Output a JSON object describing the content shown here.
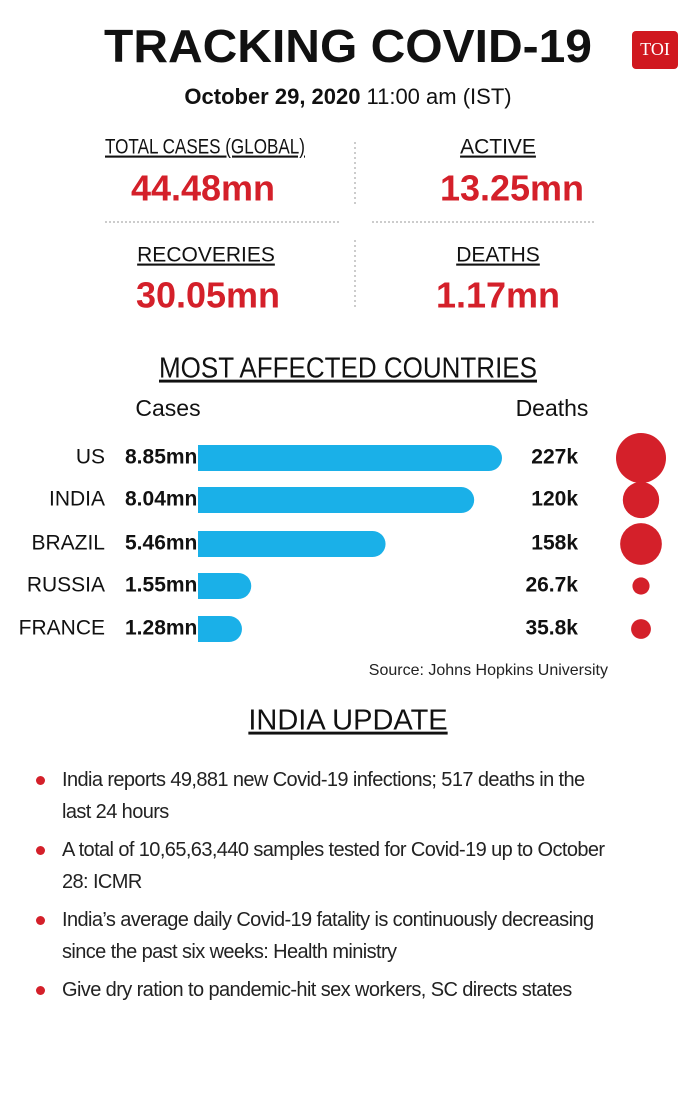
{
  "header": {
    "title": "TRACKING COVID-19",
    "logo": "TOI",
    "date": "October 29, 2020",
    "time": "11:00 am (IST)"
  },
  "stats": [
    {
      "label": "TOTAL CASES (GLOBAL)",
      "value": "44.48mn"
    },
    {
      "label": "ACTIVE",
      "value": "13.25mn"
    },
    {
      "label": "RECOVERIES",
      "value": "30.05mn"
    },
    {
      "label": "DEATHS",
      "value": "1.17mn"
    }
  ],
  "chart_data": {
    "type": "bar",
    "title": "MOST AFFECTED COUNTRIES",
    "categories": [
      "US",
      "INDIA",
      "BRAZIL",
      "RUSSIA",
      "FRANCE"
    ],
    "series": [
      {
        "name": "Cases",
        "color": "#1ab0e8",
        "values": [
          8.85,
          8.04,
          5.46,
          1.55,
          1.28
        ],
        "value_labels": [
          "8.85mn",
          "8.04mn",
          "5.46mn",
          "1.55mn",
          "1.28mn"
        ]
      },
      {
        "name": "Deaths",
        "color": "#d4202a",
        "values": [
          227,
          120,
          158,
          26.7,
          35.8
        ],
        "value_labels": [
          "227k",
          "120k",
          "158k",
          "26.7k",
          "35.8k"
        ]
      }
    ],
    "source": "Source: Johns Hopkins University"
  },
  "india_update": {
    "title": "INDIA UPDATE",
    "items": [
      "India reports 49,881 new Covid-19 infections; 517 deaths in the last 24 hours",
      "A total of 10,65,63,440 samples tested for Covid-19 up to October 28: ICMR",
      "India’s average daily Covid-19 fatality is continuously decreasing since the past six weeks: Health ministry",
      "Give dry ration to pandemic-hit sex workers, SC directs states"
    ]
  }
}
